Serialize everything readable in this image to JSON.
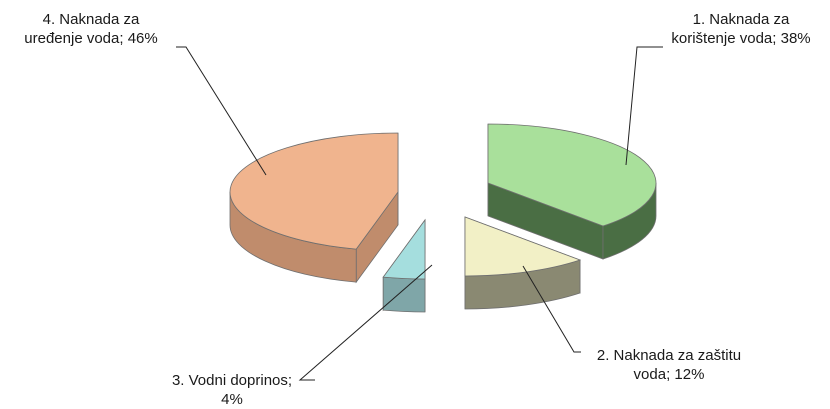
{
  "chart_data": {
    "type": "pie",
    "title": "",
    "style": "3d-exploded",
    "legend": "none",
    "slices": [
      {
        "label": "1. Naknada za korištenje voda",
        "value": 38,
        "data_label_lines": [
          "1. Naknada za",
          "korištenje voda; 38%"
        ],
        "color": "#a9e09b",
        "side_color": "#4a6e44"
      },
      {
        "label": "2. Naknada za zaštitu voda",
        "value": 12,
        "data_label_lines": [
          "2. Naknada za zaštitu",
          "voda;  12%"
        ],
        "color": "#f2f0c6",
        "side_color": "#8a8972"
      },
      {
        "label": "3. Vodni doprinos",
        "value": 4,
        "data_label_lines": [
          "3. Vodni doprinos;",
          "4%"
        ],
        "color": "#a5dede",
        "side_color": "#7fa6a8"
      },
      {
        "label": "4. Naknada za uređenje voda",
        "value": 46,
        "data_label_lines": [
          "4. Naknada za",
          "uređenje voda; 46%"
        ],
        "color": "#f0b48e",
        "side_color": "#c08c6c"
      }
    ]
  }
}
